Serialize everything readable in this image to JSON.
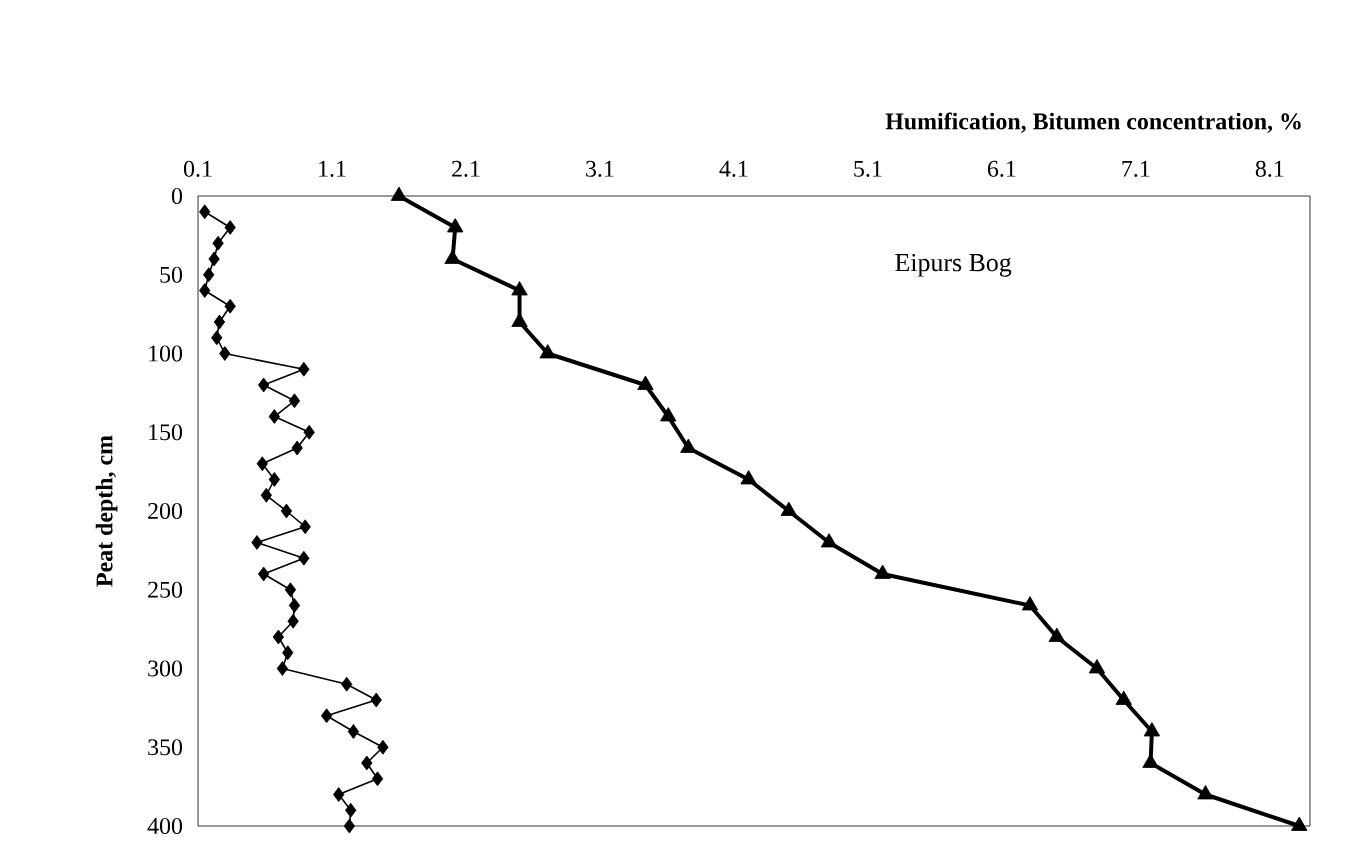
{
  "chart_data": {
    "type": "line",
    "xlabel": "Humification, Bitumen concentration, %",
    "ylabel": "Peat depth, cm",
    "annotations": [
      "Eipurs Bog"
    ],
    "xlim": [
      0.1,
      8.4
    ],
    "xticks": [
      0.1,
      1.1,
      2.1,
      3.1,
      4.1,
      5.1,
      6.1,
      7.1,
      8.1
    ],
    "ylim": [
      400,
      0
    ],
    "yticks": [
      0,
      50,
      100,
      150,
      200,
      250,
      300,
      350,
      400
    ],
    "series": [
      {
        "color": "#000000",
        "marker": "diamond",
        "x": [
          0.15,
          0.34,
          0.25,
          0.22,
          0.18,
          0.15,
          0.34,
          0.26,
          0.24,
          0.3,
          0.89,
          0.59,
          0.82,
          0.67,
          0.93,
          0.84,
          0.58,
          0.67,
          0.61,
          0.76,
          0.9,
          0.54,
          0.89,
          0.59,
          0.79,
          0.82,
          0.81,
          0.7,
          0.77,
          0.73,
          1.21,
          1.43,
          1.06,
          1.26,
          1.48,
          1.36,
          1.44,
          1.15,
          1.24,
          1.23
        ],
        "values": [
          10,
          20,
          30,
          40,
          50,
          60,
          70,
          80,
          90,
          100,
          110,
          120,
          130,
          140,
          150,
          160,
          170,
          180,
          190,
          200,
          210,
          220,
          230,
          240,
          250,
          260,
          270,
          280,
          290,
          300,
          310,
          320,
          330,
          340,
          350,
          360,
          370,
          380,
          390,
          400
        ]
      },
      {
        "color": "#000000",
        "marker": "triangle",
        "x": [
          1.6,
          2.02,
          2.0,
          2.5,
          2.5,
          2.71,
          3.44,
          3.61,
          3.76,
          4.21,
          4.51,
          4.81,
          5.21,
          6.31,
          6.51,
          6.81,
          7.01,
          7.22,
          7.21,
          7.62,
          8.32
        ],
        "values": [
          0,
          20,
          40,
          60,
          80,
          100,
          120,
          140,
          160,
          180,
          200,
          220,
          240,
          260,
          280,
          300,
          320,
          340,
          360,
          380,
          400
        ]
      }
    ]
  }
}
